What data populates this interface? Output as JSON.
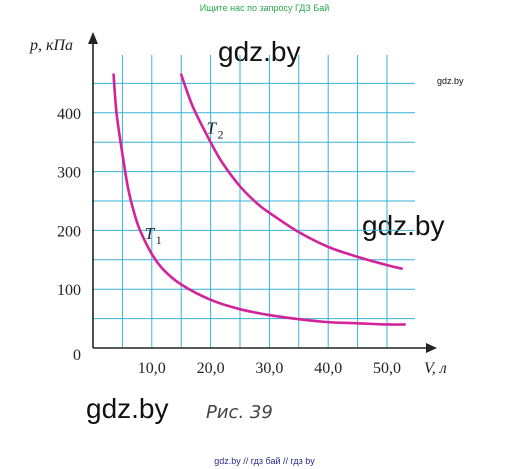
{
  "top_note": "Ищите нас по запросу ГДЗ Бай",
  "watermarks": {
    "center": "gdz.by",
    "right_small": "gdz.by",
    "right_big": "gdz.by",
    "bottom_left": "gdz.by"
  },
  "caption": "Рис. 39",
  "footer": "gdz.by // гдз бай // гдз by",
  "chart_data": {
    "type": "line",
    "title": "",
    "xlabel": "V, л",
    "ylabel": "p, кПа",
    "xlim": [
      0,
      55
    ],
    "ylim": [
      0,
      500
    ],
    "x_ticks": [
      10,
      20,
      30,
      40,
      50
    ],
    "x_tick_labels": [
      "10,0",
      "20,0",
      "30,0",
      "40,0",
      "50,0"
    ],
    "y_ticks": [
      100,
      200,
      300,
      400
    ],
    "y_tick_labels": [
      "100",
      "200",
      "300",
      "400"
    ],
    "origin_label": "0",
    "grid": true,
    "series": [
      {
        "name": "T1",
        "label_main": "T",
        "label_sub": "1",
        "color": "#d3239a",
        "x": [
          3.5,
          4,
          5,
          6,
          7,
          8,
          10,
          12,
          15,
          20,
          25,
          30,
          35,
          40,
          45,
          50,
          53
        ],
        "y": [
          465,
          400,
          330,
          270,
          230,
          200,
          160,
          133,
          108,
          82,
          66,
          56,
          49,
          44,
          42,
          40,
          40
        ]
      },
      {
        "name": "T2",
        "label_main": "T",
        "label_sub": "2",
        "color": "#d3239a",
        "x": [
          15,
          17,
          20,
          22,
          25,
          28,
          30,
          35,
          40,
          45,
          50,
          52.5
        ],
        "y": [
          465,
          410,
          350,
          315,
          275,
          245,
          230,
          197,
          172,
          155,
          141,
          135
        ]
      }
    ]
  }
}
